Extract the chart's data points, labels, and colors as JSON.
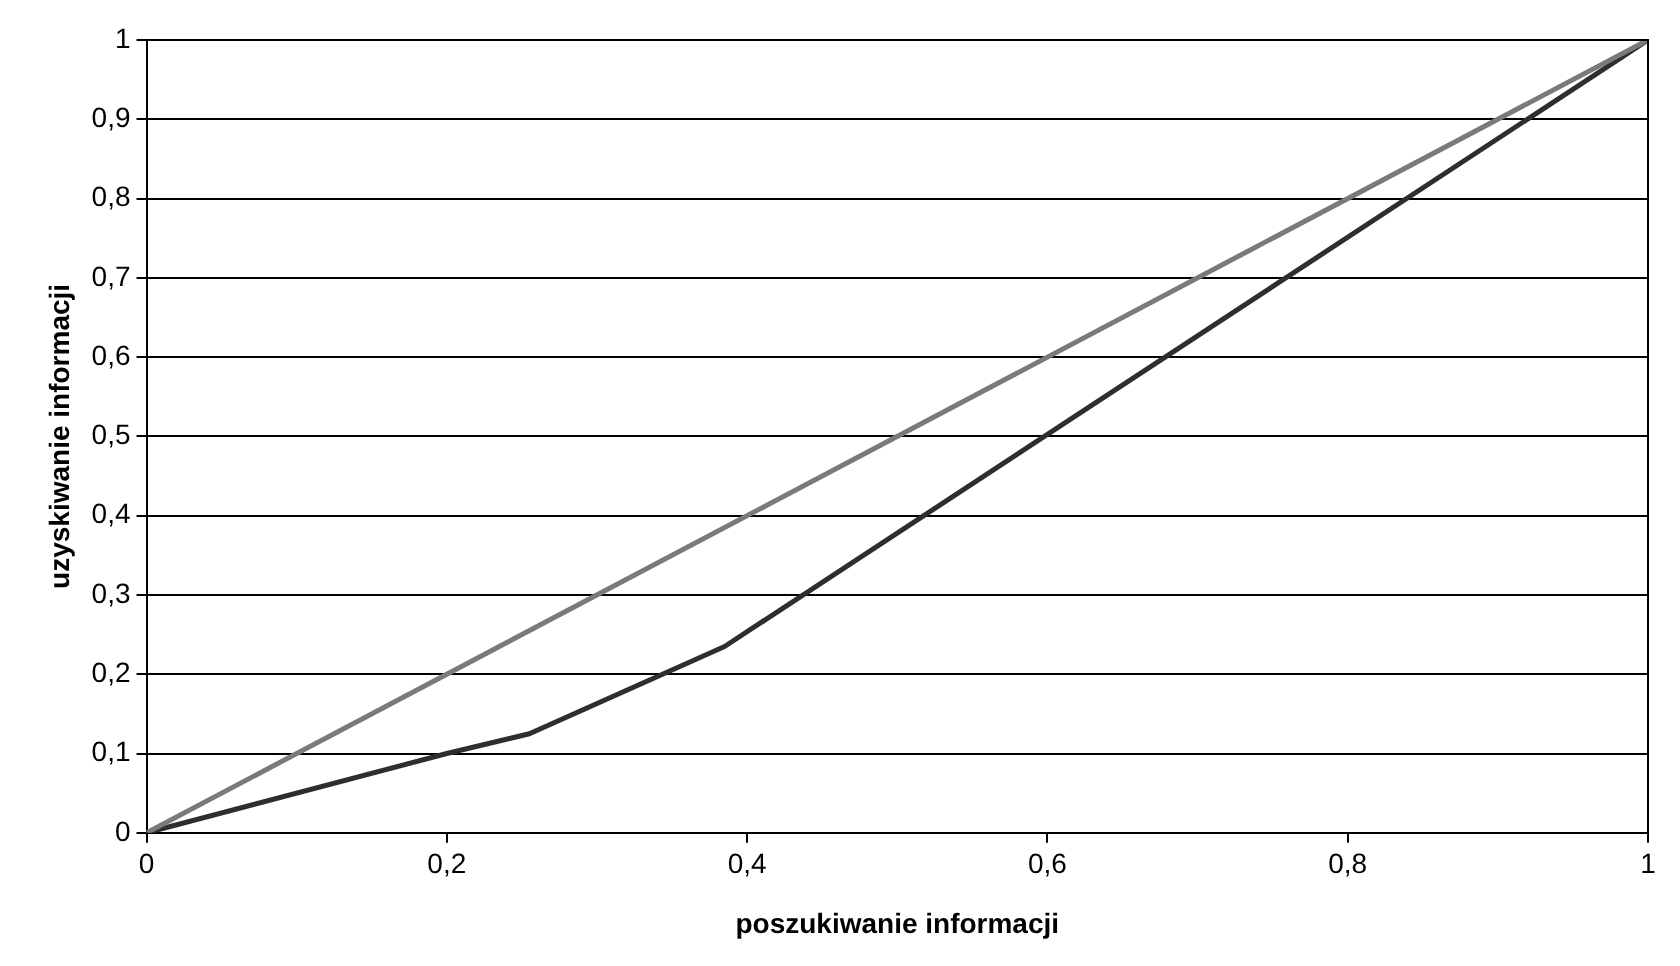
{
  "chart_data": {
    "type": "line",
    "xlabel": "poszukiwanie informacji",
    "ylabel": "uzyskiwanie informacji",
    "series": [
      {
        "color": "#7a7a7a",
        "x": [
          0,
          1
        ],
        "values": [
          0,
          1
        ]
      },
      {
        "color": "#2e2e2e",
        "x": [
          0,
          0.2,
          0.255,
          0.385,
          1
        ],
        "values": [
          0,
          0.1,
          0.125,
          0.235,
          1
        ]
      }
    ],
    "xlim": [
      0,
      1
    ],
    "xticks": [
      {
        "value": 0,
        "label": "0"
      },
      {
        "value": 0.2,
        "label": "0,2"
      },
      {
        "value": 0.4,
        "label": "0,4"
      },
      {
        "value": 0.6,
        "label": "0,6"
      },
      {
        "value": 0.8,
        "label": "0,8"
      },
      {
        "value": 1,
        "label": "1"
      }
    ],
    "ylim": [
      0,
      1
    ],
    "yticks": [
      {
        "value": 0,
        "label": "0"
      },
      {
        "value": 0.1,
        "label": "0,1"
      },
      {
        "value": 0.2,
        "label": "0,2"
      },
      {
        "value": 0.3,
        "label": "0,3"
      },
      {
        "value": 0.4,
        "label": "0,4"
      },
      {
        "value": 0.5,
        "label": "0,5"
      },
      {
        "value": 0.6,
        "label": "0,6"
      },
      {
        "value": 0.7,
        "label": "0,7"
      },
      {
        "value": 0.8,
        "label": "0,8"
      },
      {
        "value": 0.9,
        "label": "0,9"
      },
      {
        "value": 1,
        "label": "1"
      }
    ],
    "grid": "y",
    "legend": false,
    "marker": "none",
    "line_style": "solid"
  }
}
